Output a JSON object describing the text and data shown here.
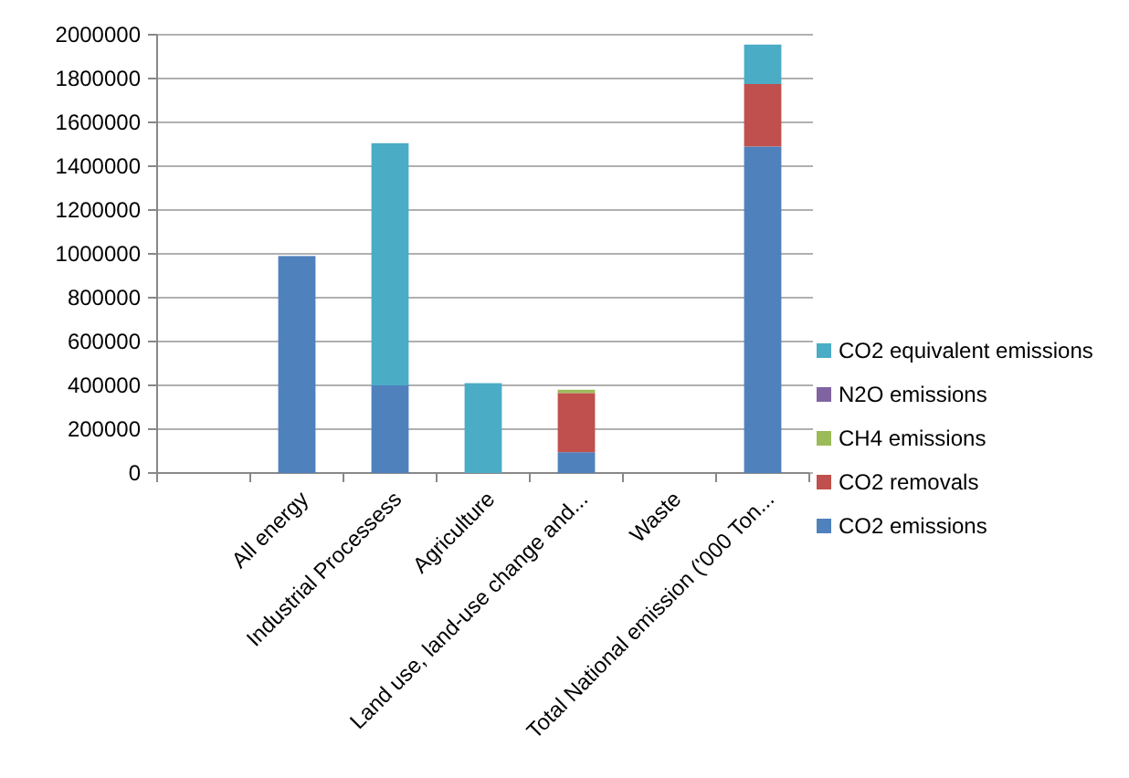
{
  "chart_data": {
    "type": "bar",
    "stacked": true,
    "categories": [
      null,
      "All energy",
      "Industrial Processess",
      "Agriculture",
      "Land use, land-use change and...",
      "Waste",
      "Total National emission ('000 Ton..."
    ],
    "series": [
      {
        "name": "CO2 emissions",
        "color": "#4f81bd",
        "values": [
          null,
          990000,
          400000,
          null,
          95000,
          null,
          1490000
        ]
      },
      {
        "name": "CO2 removals",
        "color": "#c0504d",
        "values": [
          null,
          null,
          null,
          null,
          270000,
          null,
          285000
        ]
      },
      {
        "name": "CH4 emissions",
        "color": "#9bbb59",
        "values": [
          null,
          null,
          null,
          null,
          15000,
          null,
          null
        ]
      },
      {
        "name": "N2O emissions",
        "color": "#8064a2",
        "values": [
          null,
          null,
          null,
          null,
          null,
          null,
          null
        ]
      },
      {
        "name": "CO2 equivalent emissions",
        "color": "#4bacc6",
        "values": [
          null,
          null,
          1105000,
          410000,
          null,
          null,
          180000
        ]
      }
    ],
    "ylim": [
      0,
      2000000
    ],
    "yticks": [
      0,
      200000,
      400000,
      600000,
      800000,
      1000000,
      1200000,
      1400000,
      1600000,
      1800000,
      2000000
    ],
    "grid": "y",
    "legend": "right"
  }
}
